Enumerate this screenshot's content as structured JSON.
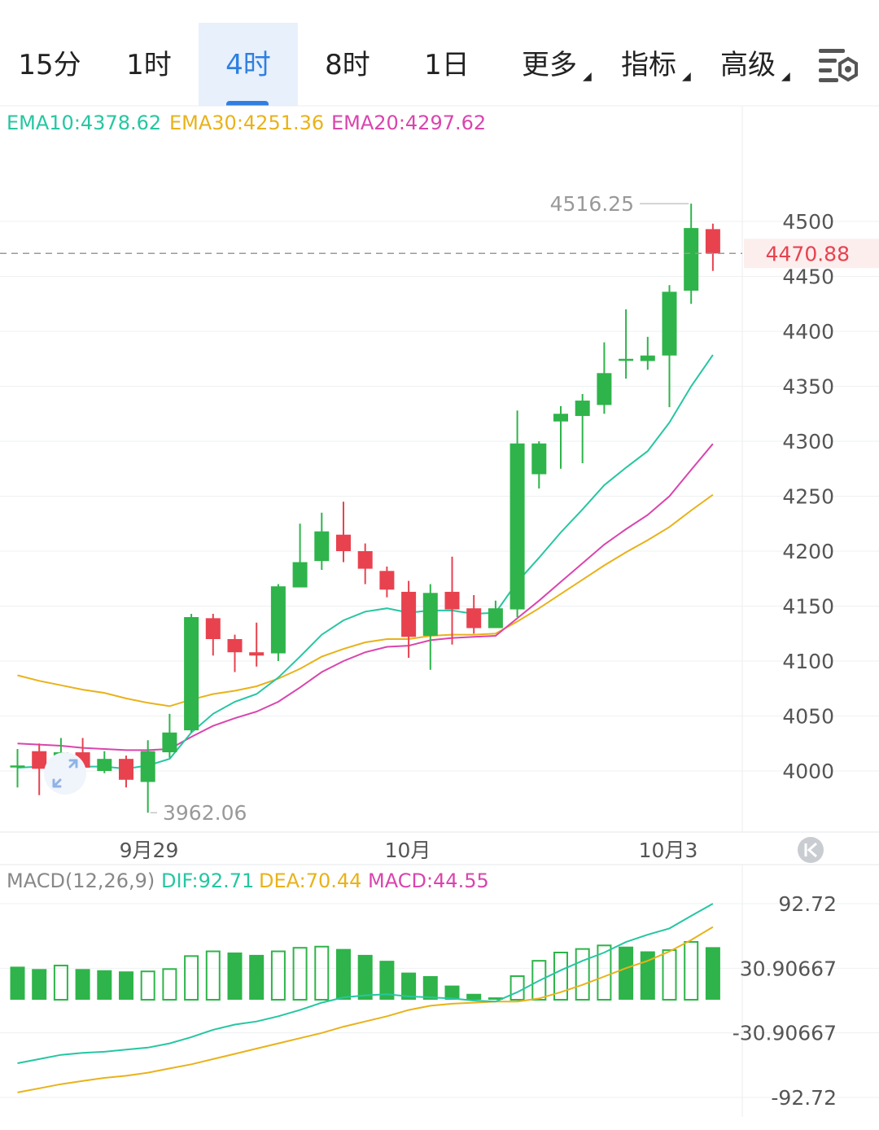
{
  "tabs": [
    {
      "label": "15分",
      "active": false
    },
    {
      "label": "1时",
      "active": false
    },
    {
      "label": "4时",
      "active": true
    },
    {
      "label": "8时",
      "active": false
    },
    {
      "label": "1日",
      "active": false
    },
    {
      "label": "更多",
      "active": false,
      "dropdown": true
    },
    {
      "label": "指标",
      "active": false,
      "dropdown": true
    },
    {
      "label": "高级",
      "active": false,
      "dropdown": true
    }
  ],
  "settings_icon": "chart-settings-icon",
  "zoom_icon": "collapse-arrows-icon",
  "scroll_icon": "scroll-to-start-icon",
  "colors": {
    "up": "#2eb44a",
    "down": "#e8424f",
    "ema10": "#26c6a2",
    "ema30": "#e9b21a",
    "ema20": "#d945ad",
    "grid": "#eef0f3",
    "axis_text": "#555555",
    "accent": "#2f7fe1"
  },
  "chart_data": [
    {
      "type": "candlestick",
      "legend": {
        "ema10": "EMA10:4378.62",
        "ema30": "EMA30:4251.36",
        "ema20": "EMA20:4297.62"
      },
      "current_price": "4470.88",
      "high_label": "4516.25",
      "low_label": "3962.06",
      "y_ticks": [
        "4500",
        "4450",
        "4400",
        "4350",
        "4300",
        "4250",
        "4200",
        "4150",
        "4100",
        "4050",
        "4000"
      ],
      "x_labels": [
        "9月29",
        "10月",
        "10月3"
      ],
      "ylim": [
        3945,
        4560
      ],
      "candles": [
        [
          4005,
          4005,
          3985,
          4020
        ],
        [
          4018,
          4002,
          3978,
          4025
        ],
        [
          4001,
          4017,
          3998,
          4030
        ],
        [
          4017,
          4003,
          3992,
          4030
        ],
        [
          4000,
          4011,
          3998,
          4018
        ],
        [
          4011,
          3992,
          3985,
          4014
        ],
        [
          3990,
          4018,
          3962,
          4028
        ],
        [
          4017,
          4035,
          4012,
          4052
        ],
        [
          4037,
          4140,
          4035,
          4143
        ],
        [
          4139,
          4120,
          4105,
          4143
        ],
        [
          4120,
          4108,
          4090,
          4124
        ],
        [
          4108,
          4105,
          4095,
          4135
        ],
        [
          4107,
          4168,
          4100,
          4170
        ],
        [
          4167,
          4190,
          4168,
          4225
        ],
        [
          4191,
          4218,
          4183,
          4235
        ],
        [
          4215,
          4200,
          4190,
          4245
        ],
        [
          4200,
          4184,
          4170,
          4207
        ],
        [
          4182,
          4165,
          4158,
          4186
        ],
        [
          4163,
          4122,
          4103,
          4173
        ],
        [
          4123,
          4162,
          4092,
          4170
        ],
        [
          4163,
          4147,
          4115,
          4195
        ],
        [
          4148,
          4130,
          4125,
          4160
        ],
        [
          4130,
          4148,
          4130,
          4155
        ],
        [
          4147,
          4298,
          4140,
          4328
        ],
        [
          4270,
          4298,
          4257,
          4300
        ],
        [
          4318,
          4325,
          4275,
          4332
        ],
        [
          4323,
          4337,
          4280,
          4343
        ],
        [
          4333,
          4362,
          4325,
          4390
        ],
        [
          4375,
          4375,
          4357,
          4420
        ],
        [
          4373,
          4378,
          4365,
          4395
        ],
        [
          4378,
          4436,
          4331,
          4442
        ],
        [
          4437,
          4494,
          4425,
          4516.25
        ],
        [
          4493,
          4470.88,
          4455,
          4498
        ]
      ],
      "ema10": [
        4003,
        4004,
        4004,
        4004,
        4004,
        4002,
        4005,
        4011,
        4035,
        4052,
        4063,
        4070,
        4085,
        4104,
        4124,
        4137,
        4145,
        4148,
        4144,
        4146,
        4146,
        4143,
        4144,
        4172,
        4194,
        4217,
        4238,
        4260,
        4276,
        4291,
        4317,
        4350,
        4378.62
      ],
      "ema20": [
        4025,
        4024,
        4023,
        4021,
        4020,
        4019,
        4019,
        4020,
        4031,
        4041,
        4048,
        4054,
        4063,
        4076,
        4090,
        4100,
        4108,
        4113,
        4114,
        4119,
        4121,
        4122,
        4123,
        4139,
        4155,
        4172,
        4189,
        4206,
        4220,
        4233,
        4250,
        4274,
        4297.62
      ],
      "ema30": [
        4087,
        4082,
        4078,
        4074,
        4071,
        4066,
        4062,
        4059,
        4065,
        4070,
        4073,
        4077,
        4084,
        4093,
        4104,
        4111,
        4117,
        4120,
        4120,
        4123,
        4124,
        4124,
        4125,
        4136,
        4148,
        4161,
        4174,
        4187,
        4199,
        4210,
        4222,
        4237,
        4251.36
      ]
    },
    {
      "type": "macd",
      "legend": {
        "title": "MACD(12,26,9)",
        "dif": "DIF:92.71",
        "dea": "DEA:70.44",
        "macd": "MACD:44.55"
      },
      "y_ticks": [
        "92.72",
        "30.90667",
        "-30.90667",
        "-92.72"
      ],
      "ylim": [
        -92.72,
        92.72
      ],
      "hist": [
        {
          "v": 28,
          "hollow": false
        },
        {
          "v": 26,
          "hollow": false
        },
        {
          "v": 29,
          "hollow": true
        },
        {
          "v": 26,
          "hollow": false
        },
        {
          "v": 25,
          "hollow": false
        },
        {
          "v": 24,
          "hollow": false
        },
        {
          "v": 24,
          "hollow": true
        },
        {
          "v": 26,
          "hollow": true
        },
        {
          "v": 37,
          "hollow": true
        },
        {
          "v": 41,
          "hollow": true
        },
        {
          "v": 40,
          "hollow": false
        },
        {
          "v": 38,
          "hollow": false
        },
        {
          "v": 41,
          "hollow": true
        },
        {
          "v": 44,
          "hollow": true
        },
        {
          "v": 45,
          "hollow": true
        },
        {
          "v": 43,
          "hollow": false
        },
        {
          "v": 38,
          "hollow": false
        },
        {
          "v": 33,
          "hollow": false
        },
        {
          "v": 23,
          "hollow": false
        },
        {
          "v": 20,
          "hollow": false
        },
        {
          "v": 12,
          "hollow": false
        },
        {
          "v": 5,
          "hollow": false
        },
        {
          "v": 2,
          "hollow": false
        },
        {
          "v": 20,
          "hollow": true
        },
        {
          "v": 33,
          "hollow": true
        },
        {
          "v": 40,
          "hollow": true
        },
        {
          "v": 43,
          "hollow": true
        },
        {
          "v": 46,
          "hollow": true
        },
        {
          "v": 45,
          "hollow": false
        },
        {
          "v": 41,
          "hollow": false
        },
        {
          "v": 42,
          "hollow": true
        },
        {
          "v": 49,
          "hollow": true
        },
        {
          "v": 44.55,
          "hollow": false
        }
      ],
      "dif": [
        -60,
        -56,
        -52,
        -50,
        -49,
        -47,
        -45,
        -41,
        -35,
        -28,
        -23,
        -20,
        -15,
        -9,
        -2,
        3,
        5,
        6,
        4,
        3,
        2,
        0,
        -1,
        8,
        19,
        29,
        38,
        46,
        56,
        63,
        69,
        81,
        92.71
      ],
      "dea": [
        -88,
        -84,
        -80,
        -77,
        -74,
        -72,
        -69,
        -65,
        -61,
        -56,
        -51,
        -46,
        -41,
        -36,
        -31,
        -25,
        -20,
        -15,
        -9,
        -5,
        -3,
        -2,
        -1,
        -1,
        2,
        8,
        15,
        23,
        31,
        38,
        47,
        58,
        70.44
      ]
    }
  ]
}
